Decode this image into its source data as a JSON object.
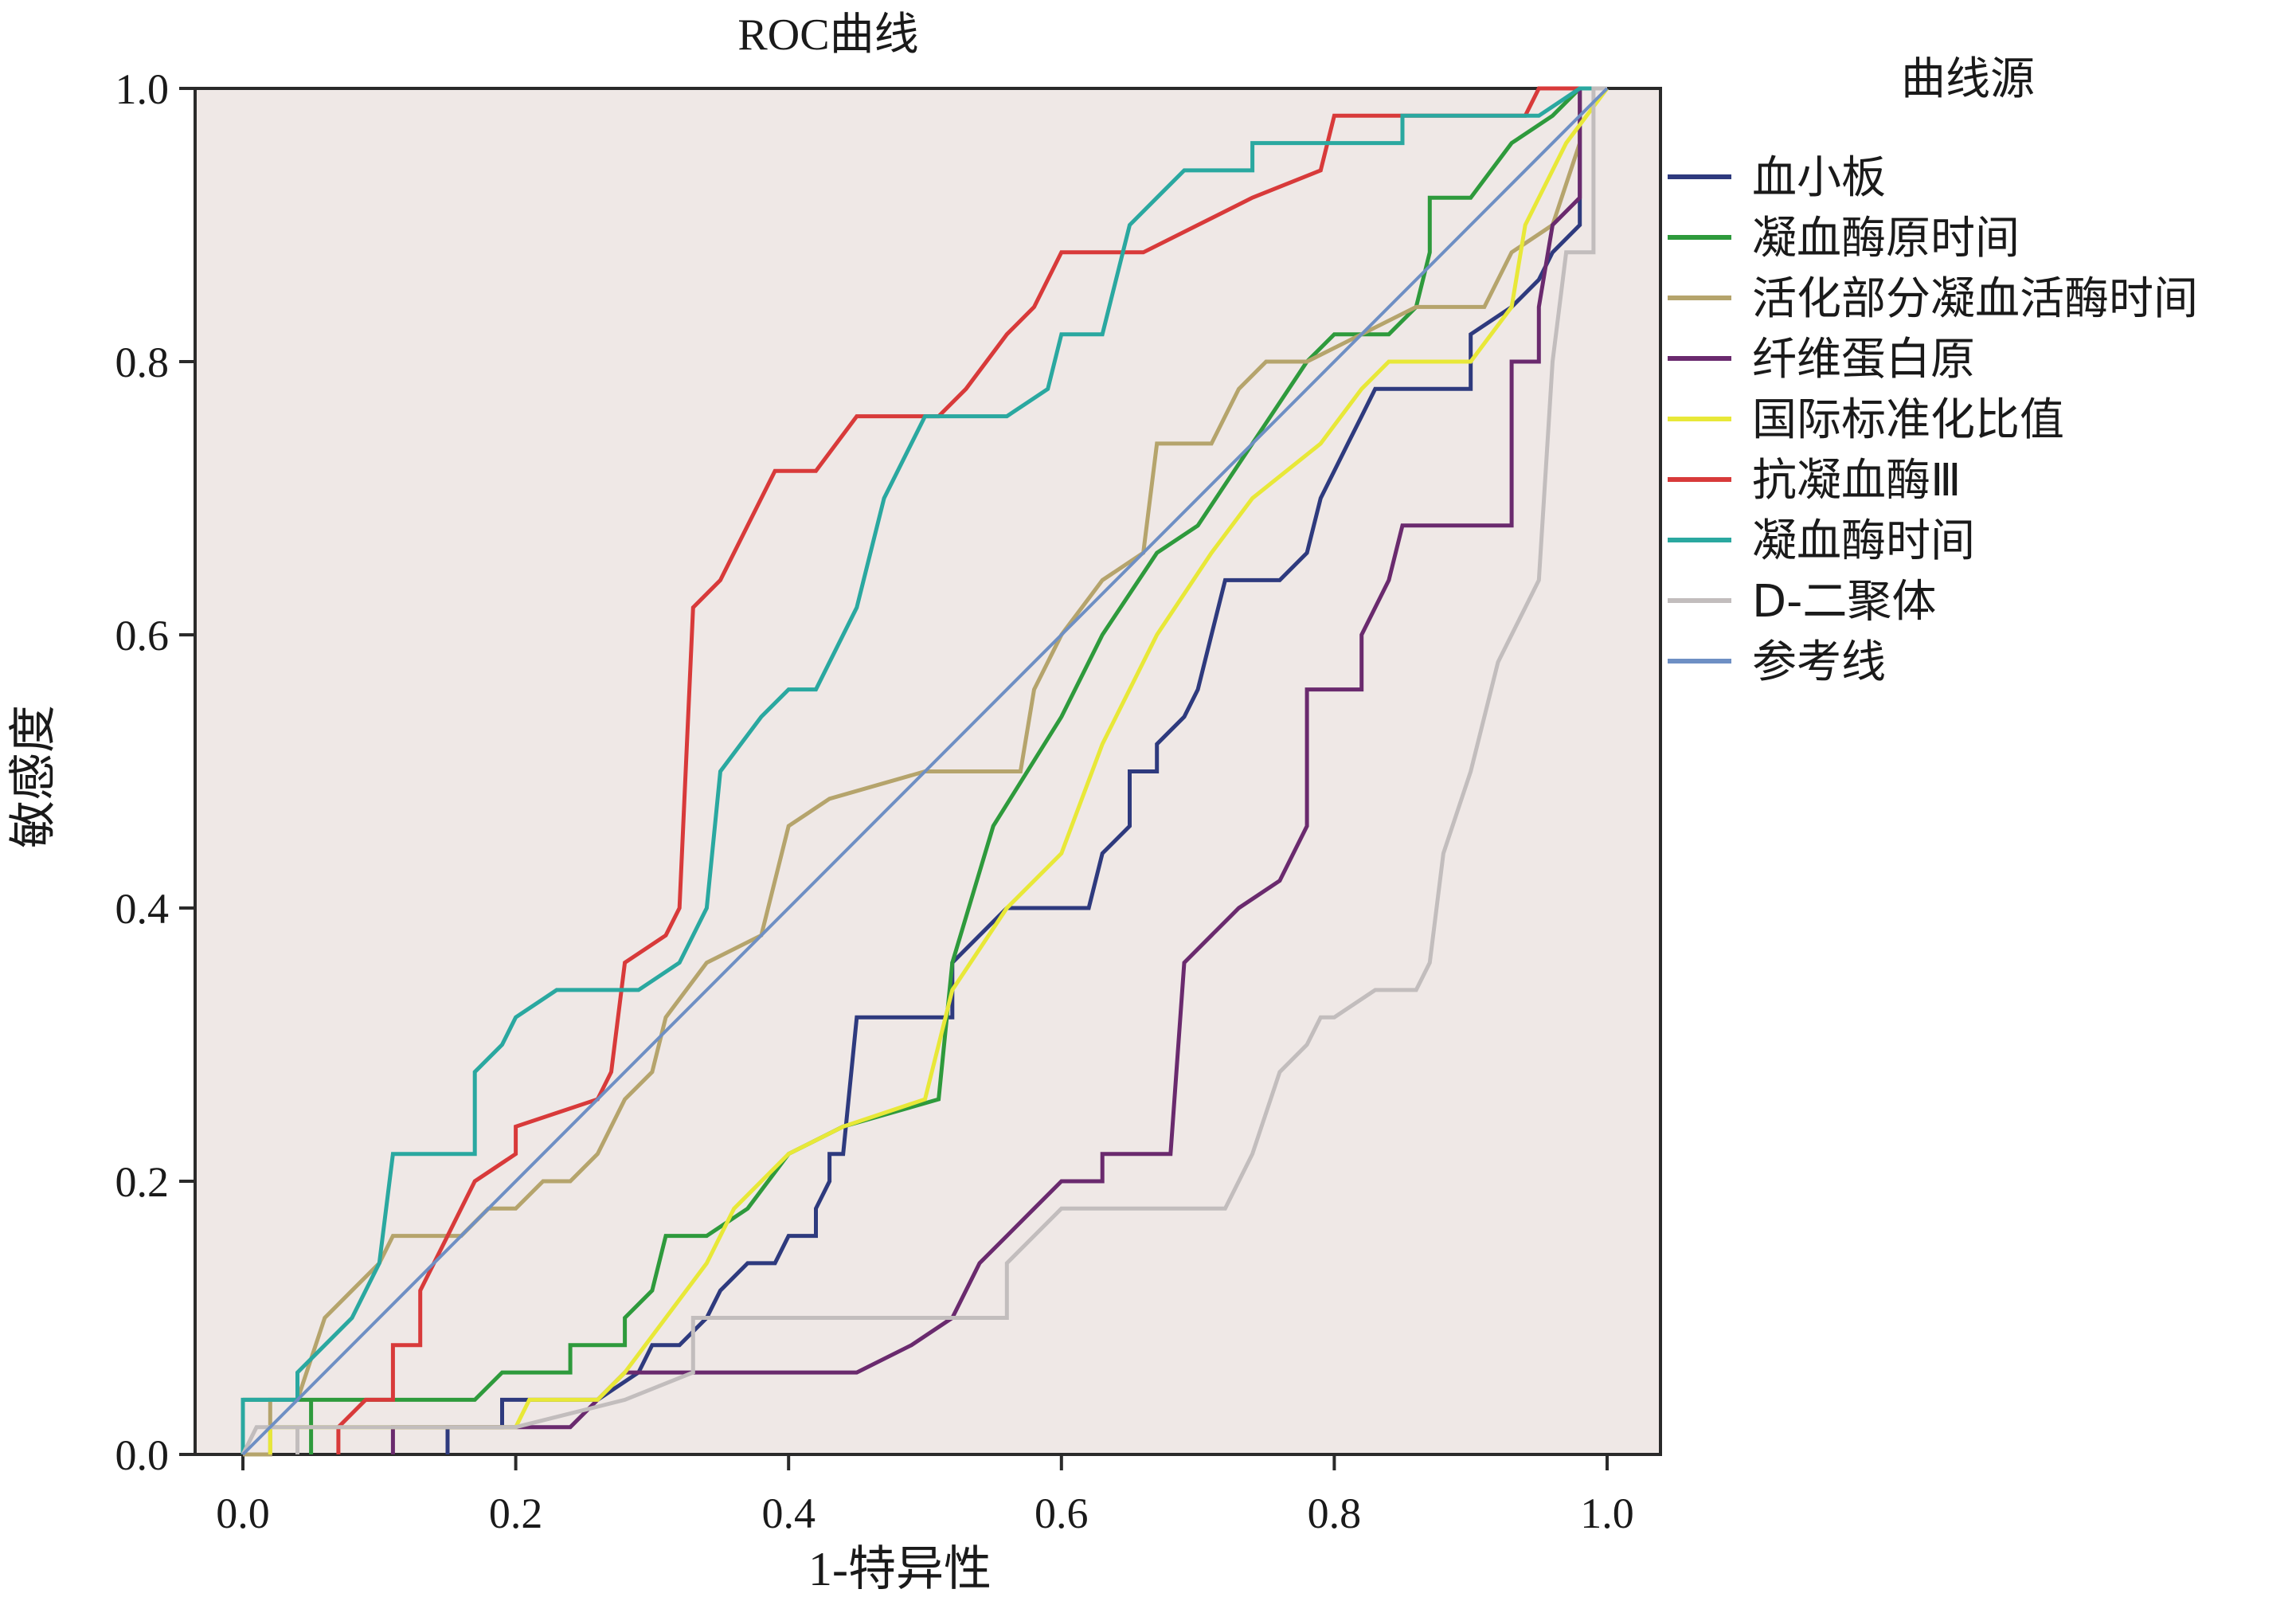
{
  "chart_data": {
    "type": "line",
    "title": "ROC曲线",
    "xlabel": "1-特异性",
    "ylabel": "敏感度",
    "xlim": [
      0.0,
      1.0
    ],
    "ylim": [
      0.0,
      1.0
    ],
    "xticks": [
      "0.0",
      "0.2",
      "0.4",
      "0.6",
      "0.8",
      "1.0"
    ],
    "yticks": [
      "0.0",
      "0.2",
      "0.4",
      "0.6",
      "0.8",
      "1.0"
    ],
    "grid": false,
    "background": "#efe8e6",
    "legend": {
      "title": "曲线源",
      "position": "right"
    },
    "series": [
      {
        "name": "血小板",
        "color": "#2e3a7e",
        "points": [
          [
            0.15,
            0.0
          ],
          [
            0.15,
            0.02
          ],
          [
            0.19,
            0.02
          ],
          [
            0.19,
            0.04
          ],
          [
            0.26,
            0.04
          ],
          [
            0.29,
            0.06
          ],
          [
            0.3,
            0.08
          ],
          [
            0.32,
            0.08
          ],
          [
            0.34,
            0.1
          ],
          [
            0.35,
            0.12
          ],
          [
            0.37,
            0.14
          ],
          [
            0.39,
            0.14
          ],
          [
            0.4,
            0.16
          ],
          [
            0.42,
            0.16
          ],
          [
            0.42,
            0.18
          ],
          [
            0.43,
            0.2
          ],
          [
            0.43,
            0.22
          ],
          [
            0.44,
            0.22
          ],
          [
            0.45,
            0.32
          ],
          [
            0.52,
            0.32
          ],
          [
            0.52,
            0.36
          ],
          [
            0.56,
            0.4
          ],
          [
            0.6,
            0.4
          ],
          [
            0.62,
            0.4
          ],
          [
            0.63,
            0.44
          ],
          [
            0.65,
            0.46
          ],
          [
            0.65,
            0.5
          ],
          [
            0.67,
            0.5
          ],
          [
            0.67,
            0.52
          ],
          [
            0.69,
            0.54
          ],
          [
            0.7,
            0.56
          ],
          [
            0.71,
            0.6
          ],
          [
            0.72,
            0.64
          ],
          [
            0.76,
            0.64
          ],
          [
            0.78,
            0.66
          ],
          [
            0.79,
            0.7
          ],
          [
            0.8,
            0.72
          ],
          [
            0.81,
            0.74
          ],
          [
            0.82,
            0.76
          ],
          [
            0.83,
            0.78
          ],
          [
            0.9,
            0.78
          ],
          [
            0.9,
            0.82
          ],
          [
            0.93,
            0.84
          ],
          [
            0.95,
            0.86
          ],
          [
            0.96,
            0.88
          ],
          [
            0.98,
            0.9
          ],
          [
            0.98,
            1.0
          ],
          [
            1.0,
            1.0
          ]
        ]
      },
      {
        "name": "凝血酶原时间",
        "color": "#2e9a3c",
        "points": [
          [
            0.0,
            0.04
          ],
          [
            0.05,
            0.04
          ],
          [
            0.05,
            0.0
          ],
          [
            0.05,
            0.04
          ],
          [
            0.12,
            0.04
          ],
          [
            0.17,
            0.04
          ],
          [
            0.19,
            0.06
          ],
          [
            0.24,
            0.06
          ],
          [
            0.24,
            0.08
          ],
          [
            0.28,
            0.08
          ],
          [
            0.28,
            0.1
          ],
          [
            0.3,
            0.12
          ],
          [
            0.31,
            0.16
          ],
          [
            0.34,
            0.16
          ],
          [
            0.37,
            0.18
          ],
          [
            0.4,
            0.22
          ],
          [
            0.44,
            0.24
          ],
          [
            0.51,
            0.26
          ],
          [
            0.52,
            0.36
          ],
          [
            0.55,
            0.46
          ],
          [
            0.6,
            0.54
          ],
          [
            0.63,
            0.6
          ],
          [
            0.67,
            0.66
          ],
          [
            0.7,
            0.68
          ],
          [
            0.74,
            0.74
          ],
          [
            0.78,
            0.8
          ],
          [
            0.8,
            0.82
          ],
          [
            0.84,
            0.82
          ],
          [
            0.86,
            0.84
          ],
          [
            0.87,
            0.88
          ],
          [
            0.87,
            0.92
          ],
          [
            0.9,
            0.92
          ],
          [
            0.93,
            0.96
          ],
          [
            0.96,
            0.98
          ],
          [
            0.98,
            1.0
          ],
          [
            1.0,
            1.0
          ]
        ]
      },
      {
        "name": "活化部分凝血活酶时间",
        "color": "#b5a46c",
        "points": [
          [
            0.0,
            0.0
          ],
          [
            0.02,
            0.0
          ],
          [
            0.02,
            0.04
          ],
          [
            0.04,
            0.04
          ],
          [
            0.06,
            0.1
          ],
          [
            0.08,
            0.12
          ],
          [
            0.1,
            0.14
          ],
          [
            0.11,
            0.16
          ],
          [
            0.14,
            0.16
          ],
          [
            0.16,
            0.16
          ],
          [
            0.18,
            0.18
          ],
          [
            0.2,
            0.18
          ],
          [
            0.22,
            0.2
          ],
          [
            0.24,
            0.2
          ],
          [
            0.26,
            0.22
          ],
          [
            0.27,
            0.24
          ],
          [
            0.28,
            0.26
          ],
          [
            0.3,
            0.28
          ],
          [
            0.31,
            0.32
          ],
          [
            0.34,
            0.36
          ],
          [
            0.38,
            0.38
          ],
          [
            0.4,
            0.46
          ],
          [
            0.43,
            0.48
          ],
          [
            0.5,
            0.5
          ],
          [
            0.57,
            0.5
          ],
          [
            0.58,
            0.56
          ],
          [
            0.6,
            0.6
          ],
          [
            0.63,
            0.64
          ],
          [
            0.66,
            0.66
          ],
          [
            0.67,
            0.74
          ],
          [
            0.71,
            0.74
          ],
          [
            0.73,
            0.78
          ],
          [
            0.75,
            0.8
          ],
          [
            0.78,
            0.8
          ],
          [
            0.82,
            0.82
          ],
          [
            0.86,
            0.84
          ],
          [
            0.91,
            0.84
          ],
          [
            0.93,
            0.88
          ],
          [
            0.96,
            0.9
          ],
          [
            0.98,
            0.96
          ],
          [
            0.98,
            1.0
          ],
          [
            1.0,
            1.0
          ]
        ]
      },
      {
        "name": "纤维蛋白原",
        "color": "#6a2a6e",
        "points": [
          [
            0.11,
            0.0
          ],
          [
            0.11,
            0.02
          ],
          [
            0.17,
            0.02
          ],
          [
            0.24,
            0.02
          ],
          [
            0.26,
            0.04
          ],
          [
            0.28,
            0.06
          ],
          [
            0.45,
            0.06
          ],
          [
            0.49,
            0.08
          ],
          [
            0.52,
            0.1
          ],
          [
            0.54,
            0.14
          ],
          [
            0.56,
            0.16
          ],
          [
            0.58,
            0.18
          ],
          [
            0.6,
            0.2
          ],
          [
            0.63,
            0.2
          ],
          [
            0.63,
            0.22
          ],
          [
            0.68,
            0.22
          ],
          [
            0.69,
            0.36
          ],
          [
            0.71,
            0.38
          ],
          [
            0.73,
            0.4
          ],
          [
            0.76,
            0.42
          ],
          [
            0.78,
            0.46
          ],
          [
            0.78,
            0.56
          ],
          [
            0.82,
            0.56
          ],
          [
            0.82,
            0.6
          ],
          [
            0.84,
            0.64
          ],
          [
            0.85,
            0.68
          ],
          [
            0.93,
            0.68
          ],
          [
            0.93,
            0.8
          ],
          [
            0.95,
            0.8
          ],
          [
            0.95,
            0.84
          ],
          [
            0.96,
            0.9
          ],
          [
            0.98,
            0.92
          ],
          [
            0.98,
            1.0
          ],
          [
            1.0,
            1.0
          ]
        ]
      },
      {
        "name": "国际标准化比值",
        "color": "#e8e838",
        "points": [
          [
            0.02,
            0.0
          ],
          [
            0.02,
            0.02
          ],
          [
            0.07,
            0.02
          ],
          [
            0.14,
            0.02
          ],
          [
            0.2,
            0.02
          ],
          [
            0.21,
            0.04
          ],
          [
            0.26,
            0.04
          ],
          [
            0.28,
            0.06
          ],
          [
            0.31,
            0.1
          ],
          [
            0.34,
            0.14
          ],
          [
            0.36,
            0.18
          ],
          [
            0.4,
            0.22
          ],
          [
            0.44,
            0.24
          ],
          [
            0.5,
            0.26
          ],
          [
            0.52,
            0.34
          ],
          [
            0.56,
            0.4
          ],
          [
            0.6,
            0.44
          ],
          [
            0.63,
            0.52
          ],
          [
            0.67,
            0.6
          ],
          [
            0.71,
            0.66
          ],
          [
            0.74,
            0.7
          ],
          [
            0.79,
            0.74
          ],
          [
            0.82,
            0.78
          ],
          [
            0.84,
            0.8
          ],
          [
            0.9,
            0.8
          ],
          [
            0.93,
            0.84
          ],
          [
            0.94,
            0.9
          ],
          [
            0.97,
            0.96
          ],
          [
            1.0,
            1.0
          ]
        ]
      },
      {
        "name": "抗凝血酶Ⅲ",
        "color": "#d83a3a",
        "points": [
          [
            0.07,
            0.0
          ],
          [
            0.07,
            0.02
          ],
          [
            0.09,
            0.04
          ],
          [
            0.11,
            0.04
          ],
          [
            0.11,
            0.08
          ],
          [
            0.13,
            0.08
          ],
          [
            0.13,
            0.12
          ],
          [
            0.15,
            0.16
          ],
          [
            0.17,
            0.2
          ],
          [
            0.2,
            0.22
          ],
          [
            0.2,
            0.24
          ],
          [
            0.26,
            0.26
          ],
          [
            0.27,
            0.28
          ],
          [
            0.28,
            0.36
          ],
          [
            0.31,
            0.38
          ],
          [
            0.32,
            0.4
          ],
          [
            0.33,
            0.62
          ],
          [
            0.35,
            0.64
          ],
          [
            0.37,
            0.68
          ],
          [
            0.39,
            0.72
          ],
          [
            0.42,
            0.72
          ],
          [
            0.45,
            0.76
          ],
          [
            0.51,
            0.76
          ],
          [
            0.53,
            0.78
          ],
          [
            0.56,
            0.82
          ],
          [
            0.58,
            0.84
          ],
          [
            0.6,
            0.88
          ],
          [
            0.66,
            0.88
          ],
          [
            0.7,
            0.9
          ],
          [
            0.74,
            0.92
          ],
          [
            0.79,
            0.94
          ],
          [
            0.8,
            0.98
          ],
          [
            0.9,
            0.98
          ],
          [
            0.94,
            0.98
          ],
          [
            0.95,
            1.0
          ],
          [
            1.0,
            1.0
          ]
        ]
      },
      {
        "name": "凝血酶时间",
        "color": "#2aa8a0",
        "points": [
          [
            0.0,
            0.0
          ],
          [
            0.0,
            0.04
          ],
          [
            0.04,
            0.04
          ],
          [
            0.04,
            0.06
          ],
          [
            0.06,
            0.08
          ],
          [
            0.08,
            0.1
          ],
          [
            0.1,
            0.14
          ],
          [
            0.11,
            0.22
          ],
          [
            0.17,
            0.22
          ],
          [
            0.17,
            0.28
          ],
          [
            0.19,
            0.3
          ],
          [
            0.2,
            0.32
          ],
          [
            0.23,
            0.34
          ],
          [
            0.29,
            0.34
          ],
          [
            0.32,
            0.36
          ],
          [
            0.34,
            0.4
          ],
          [
            0.35,
            0.5
          ],
          [
            0.38,
            0.54
          ],
          [
            0.4,
            0.56
          ],
          [
            0.42,
            0.56
          ],
          [
            0.45,
            0.62
          ],
          [
            0.47,
            0.7
          ],
          [
            0.5,
            0.76
          ],
          [
            0.56,
            0.76
          ],
          [
            0.59,
            0.78
          ],
          [
            0.6,
            0.82
          ],
          [
            0.63,
            0.82
          ],
          [
            0.65,
            0.9
          ],
          [
            0.67,
            0.92
          ],
          [
            0.69,
            0.94
          ],
          [
            0.74,
            0.94
          ],
          [
            0.74,
            0.96
          ],
          [
            0.85,
            0.96
          ],
          [
            0.85,
            0.98
          ],
          [
            0.9,
            0.98
          ],
          [
            0.95,
            0.98
          ],
          [
            0.98,
            1.0
          ],
          [
            1.0,
            1.0
          ]
        ]
      },
      {
        "name": "D-二聚体",
        "color": "#c2bdbd",
        "points": [
          [
            0.0,
            0.0
          ],
          [
            0.01,
            0.02
          ],
          [
            0.04,
            0.02
          ],
          [
            0.04,
            0.0
          ],
          [
            0.04,
            0.02
          ],
          [
            0.2,
            0.02
          ],
          [
            0.28,
            0.04
          ],
          [
            0.33,
            0.06
          ],
          [
            0.33,
            0.1
          ],
          [
            0.44,
            0.1
          ],
          [
            0.56,
            0.1
          ],
          [
            0.56,
            0.14
          ],
          [
            0.58,
            0.16
          ],
          [
            0.6,
            0.18
          ],
          [
            0.72,
            0.18
          ],
          [
            0.73,
            0.2
          ],
          [
            0.74,
            0.22
          ],
          [
            0.76,
            0.28
          ],
          [
            0.78,
            0.3
          ],
          [
            0.79,
            0.32
          ],
          [
            0.8,
            0.32
          ],
          [
            0.83,
            0.34
          ],
          [
            0.86,
            0.34
          ],
          [
            0.87,
            0.36
          ],
          [
            0.88,
            0.44
          ],
          [
            0.9,
            0.5
          ],
          [
            0.92,
            0.58
          ],
          [
            0.94,
            0.62
          ],
          [
            0.95,
            0.64
          ],
          [
            0.96,
            0.8
          ],
          [
            0.97,
            0.88
          ],
          [
            0.99,
            0.88
          ],
          [
            0.99,
            1.0
          ],
          [
            1.0,
            1.0
          ]
        ]
      },
      {
        "name": "参考线",
        "color": "#6e8fc4",
        "points": [
          [
            0.0,
            0.0
          ],
          [
            1.0,
            1.0
          ]
        ]
      }
    ]
  }
}
